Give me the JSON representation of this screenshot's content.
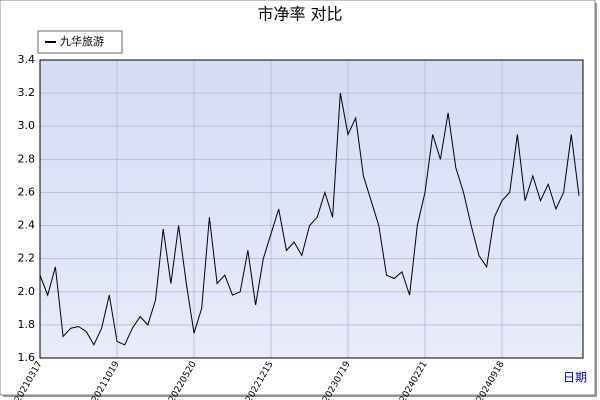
{
  "chart_data": {
    "type": "line",
    "title": "市净率  对比",
    "x_label": "日期",
    "categories": [
      "20210317",
      null,
      null,
      null,
      null,
      null,
      null,
      null,
      null,
      null,
      "20211019",
      null,
      null,
      null,
      null,
      null,
      null,
      null,
      null,
      null,
      "20220520",
      null,
      null,
      null,
      null,
      null,
      null,
      null,
      null,
      null,
      "20221215",
      null,
      null,
      null,
      null,
      null,
      null,
      null,
      null,
      null,
      "20230719",
      null,
      null,
      null,
      null,
      null,
      null,
      null,
      null,
      null,
      "20240221",
      null,
      null,
      null,
      null,
      null,
      null,
      null,
      null,
      null,
      "20240918",
      null,
      null,
      null,
      null,
      null,
      null,
      null,
      null,
      null,
      null
    ],
    "series": [
      {
        "name": "九华旅游",
        "color": "#000000",
        "values": [
          2.1,
          1.98,
          2.15,
          1.73,
          1.78,
          1.79,
          1.76,
          1.68,
          1.78,
          1.98,
          1.7,
          1.68,
          1.78,
          1.85,
          1.8,
          1.95,
          2.38,
          2.05,
          2.4,
          2.05,
          1.75,
          1.9,
          2.45,
          2.05,
          2.1,
          1.98,
          2.0,
          2.25,
          1.92,
          2.2,
          2.35,
          2.5,
          2.25,
          2.3,
          2.22,
          2.4,
          2.45,
          2.6,
          2.45,
          3.2,
          2.95,
          3.05,
          2.7,
          2.55,
          2.4,
          2.1,
          2.08,
          2.12,
          1.98,
          2.4,
          2.6,
          2.95,
          2.8,
          3.08,
          2.75,
          2.6,
          2.4,
          2.22,
          2.15,
          2.45,
          2.55,
          2.6,
          2.95,
          2.55,
          2.7,
          2.55,
          2.65,
          2.5,
          2.6,
          2.95,
          2.58
        ]
      }
    ],
    "ylim": [
      1.6,
      3.4
    ],
    "yticks": [
      1.6,
      1.8,
      {
        "value": 2,
        "label": "2.0"
      },
      2.2,
      2.4,
      2.6,
      2.8,
      {
        "value": 3,
        "label": "3.0"
      },
      3.2,
      3.4
    ],
    "grid": true,
    "legend": "top-left"
  }
}
